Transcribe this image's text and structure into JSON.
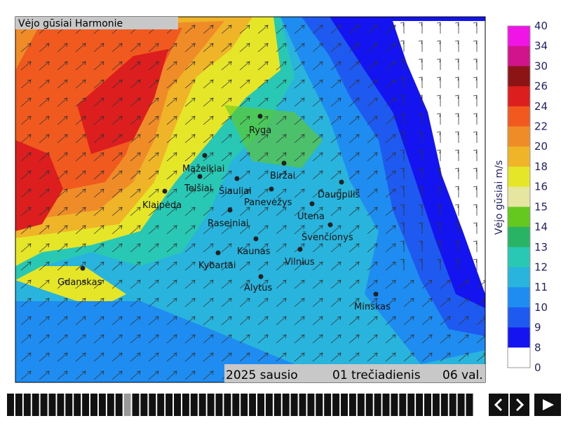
{
  "header": {
    "title": "Vėjo gūsiai Harmonie"
  },
  "cities": [
    "Ryga",
    "Mažeikiai",
    "Telšiai",
    "Šiauliai",
    "Biržai",
    "Daugpilis",
    "Klaipėda",
    "Panevėžys",
    "Utena",
    "Raseiniai",
    "Švenčionys",
    "Kaunas",
    "Vilnius",
    "Kybartai",
    "Gdanskas",
    "Alytus",
    "Minskas"
  ],
  "date_bar": {
    "month": "2025 sausio",
    "day": "01 trečiadienis",
    "hour": "06 val."
  },
  "legend": {
    "title": "Vėjo gūsiai m/s",
    "ticks": [
      40,
      34,
      30,
      26,
      24,
      22,
      20,
      18,
      16,
      15,
      14,
      13,
      12,
      11,
      10,
      9,
      8,
      0
    ],
    "colors": [
      "#f014e6",
      "#d2148c",
      "#8c1414",
      "#dc1e1e",
      "#f05a1e",
      "#f08c28",
      "#f0b428",
      "#e6e628",
      "#e6e6a0",
      "#64c81e",
      "#28b464",
      "#28c8b4",
      "#28b4dc",
      "#1e8cf0",
      "#1e5af0",
      "#1414f0",
      "#ffffff"
    ]
  }
}
